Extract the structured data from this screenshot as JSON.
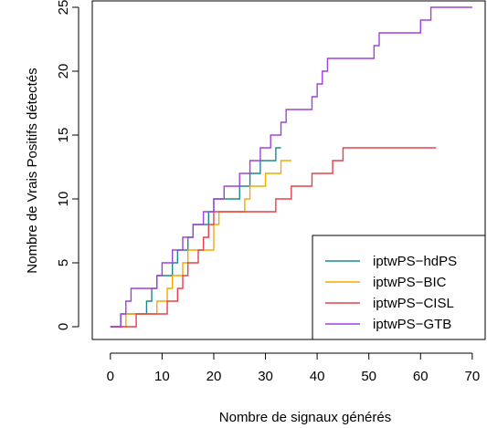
{
  "chart_data": {
    "type": "line",
    "title": "",
    "xlabel": "Nombre de signaux générés",
    "ylabel": "Nombre de Vrais Positifs détectés",
    "xlim": [
      -3.5,
      72.5
    ],
    "ylim": [
      -1,
      25.5
    ],
    "x_ticks": [
      0,
      10,
      20,
      30,
      40,
      50,
      60,
      70
    ],
    "y_ticks": [
      0,
      5,
      10,
      15,
      20,
      25
    ],
    "x_tick_labels": [
      "0",
      "10",
      "20",
      "30",
      "40",
      "50",
      "60",
      "70"
    ],
    "y_tick_labels": [
      "0",
      "5",
      "10",
      "15",
      "20",
      "25"
    ],
    "grid": false,
    "legend_position": "bottom-right",
    "series": [
      {
        "name": "iptwPS−hdPS",
        "color": "#1A8A8A",
        "x": [
          0,
          2,
          7,
          8,
          9,
          12,
          13,
          15,
          16,
          19,
          20,
          23,
          24,
          25,
          26,
          27,
          28,
          29,
          30,
          32,
          33
        ],
        "y": [
          0,
          1,
          2,
          3,
          4,
          5,
          6,
          7,
          8,
          9,
          10,
          10,
          10,
          11,
          11,
          12,
          12,
          13,
          13,
          14,
          14
        ]
      },
      {
        "name": "iptwPS−BIC",
        "color": "#F5A800",
        "x": [
          0,
          3,
          9,
          11,
          12,
          14,
          15,
          20,
          21,
          25,
          26,
          27,
          28,
          30,
          31,
          33,
          35
        ],
        "y": [
          0,
          1,
          2,
          3,
          4,
          5,
          6,
          8,
          9,
          9,
          10,
          11,
          11,
          12,
          12,
          13,
          13
        ]
      },
      {
        "name": "iptwPS−CISL",
        "color": "#E8404A",
        "x": [
          0,
          5,
          11,
          13,
          14,
          15,
          17,
          18,
          19,
          20,
          25,
          32,
          35,
          39,
          40,
          43,
          45,
          63
        ],
        "y": [
          0,
          1,
          2,
          3,
          4,
          5,
          6,
          7,
          8,
          9,
          9,
          10,
          11,
          12,
          12,
          13,
          14,
          14
        ]
      },
      {
        "name": "iptwPS−GTB",
        "color": "#A040E0",
        "x": [
          0,
          2,
          3,
          4,
          7,
          9,
          10,
          11,
          12,
          14,
          15,
          16,
          17,
          18,
          20,
          22,
          23,
          25,
          26,
          27,
          29,
          30,
          31,
          33,
          34,
          38,
          39,
          40,
          41,
          42,
          44,
          51,
          52,
          53,
          60,
          61,
          62,
          64,
          70
        ],
        "y": [
          0,
          1,
          2,
          3,
          3,
          4,
          5,
          5,
          6,
          7,
          7,
          8,
          8,
          9,
          10,
          11,
          11,
          12,
          12,
          13,
          14,
          14,
          15,
          16,
          17,
          17,
          18,
          19,
          20,
          21,
          21,
          22,
          23,
          23,
          24,
          24,
          25,
          25,
          25
        ]
      }
    ]
  }
}
